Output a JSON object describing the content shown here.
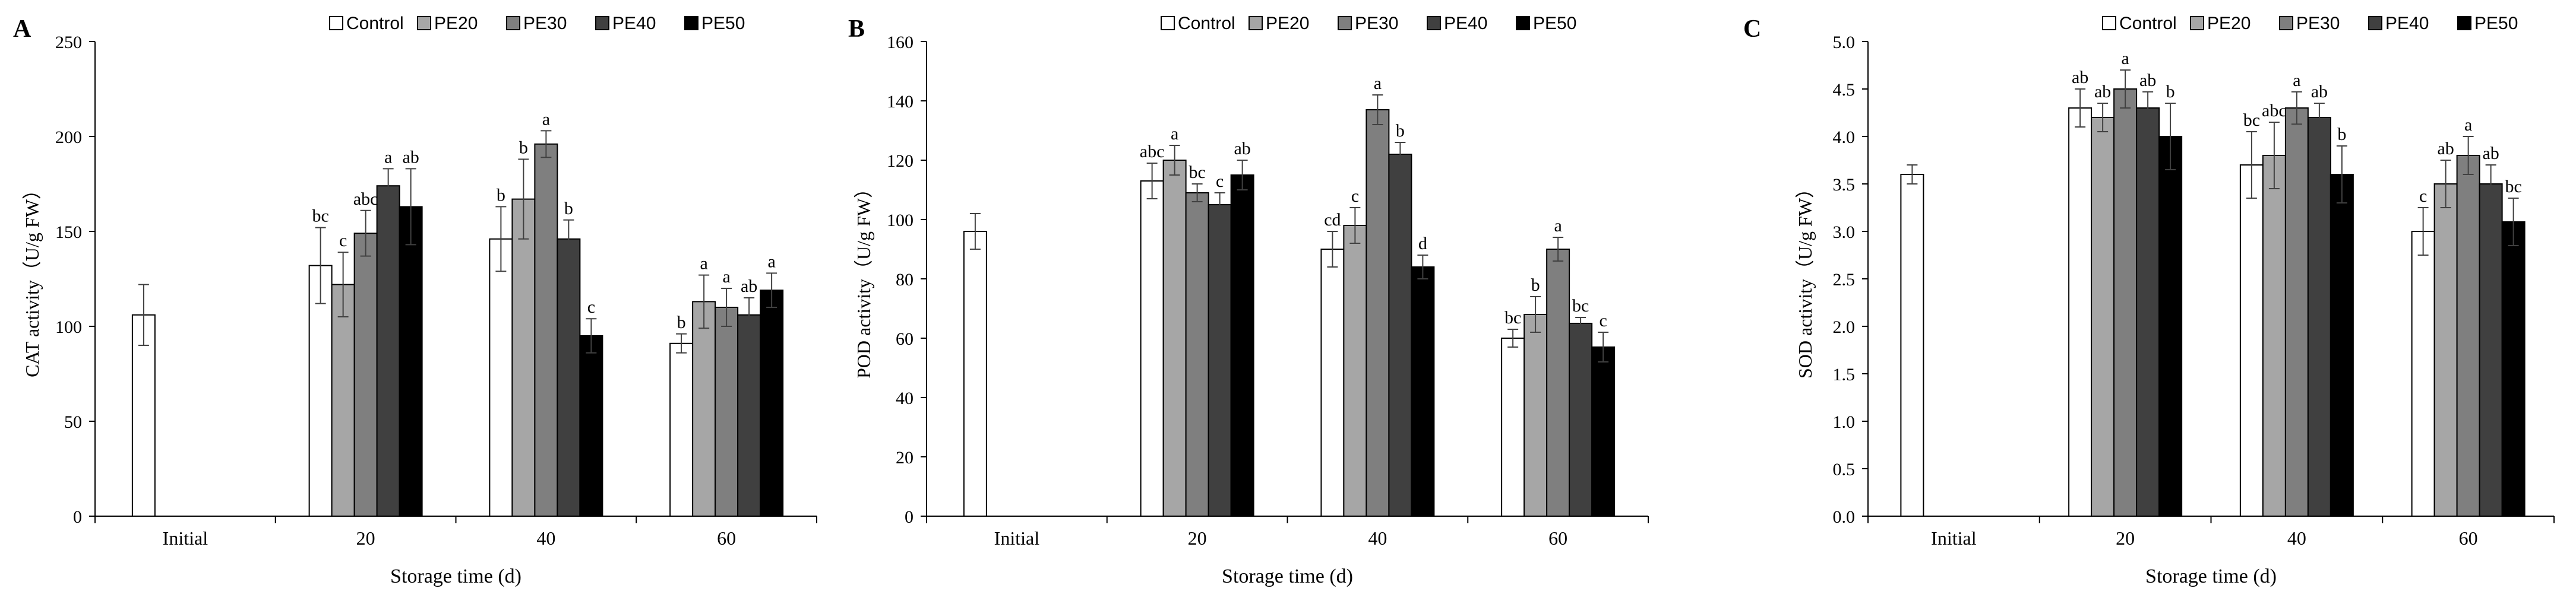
{
  "colors": {
    "Control": "#ffffff",
    "PE20": "#a6a6a6",
    "PE30": "#7f7f7f",
    "PE40": "#404040",
    "PE50": "#000000",
    "axis": "#000000",
    "error_bar": "#404040"
  },
  "chart_data": [
    {
      "type": "bar",
      "panel_label": "A",
      "title": "",
      "xlabel": "Storage time (d)",
      "ylabel": "CAT activity（U/g  FW）",
      "ylim": [
        0,
        250
      ],
      "yticks": [
        0,
        50,
        100,
        150,
        200,
        250
      ],
      "ytick_labels": [
        "0",
        "50",
        "100",
        "150",
        "200",
        "250"
      ],
      "categories": [
        "Initial",
        "20",
        "40",
        "60"
      ],
      "legend": [
        "Control",
        "PE20",
        "PE30",
        "PE40",
        "PE50"
      ],
      "legend_position": "top",
      "initial": {
        "name": "Control",
        "value": 106,
        "error": 16
      },
      "series": [
        {
          "name": "Control",
          "values": [
            null,
            132,
            146,
            91
          ],
          "errors": [
            null,
            20,
            17,
            5
          ],
          "letters": [
            "",
            "bc",
            "b",
            "b"
          ]
        },
        {
          "name": "PE20",
          "values": [
            null,
            122,
            167,
            113
          ],
          "errors": [
            null,
            17,
            21,
            14
          ],
          "letters": [
            "",
            "c",
            "b",
            "a"
          ]
        },
        {
          "name": "PE30",
          "values": [
            null,
            149,
            196,
            110
          ],
          "errors": [
            null,
            12,
            7,
            10
          ],
          "letters": [
            "",
            "abc",
            "a",
            "a"
          ]
        },
        {
          "name": "PE40",
          "values": [
            null,
            174,
            146,
            106
          ],
          "errors": [
            null,
            9,
            10,
            9
          ],
          "letters": [
            "",
            "a",
            "b",
            "ab"
          ]
        },
        {
          "name": "PE50",
          "values": [
            null,
            163,
            95,
            119
          ],
          "errors": [
            null,
            20,
            9,
            9
          ],
          "letters": [
            "",
            "ab",
            "c",
            "a"
          ]
        }
      ]
    },
    {
      "type": "bar",
      "panel_label": "B",
      "title": "",
      "xlabel": "Storage time (d)",
      "ylabel": "POD activity（U/g  FW）",
      "ylim": [
        0,
        160
      ],
      "yticks": [
        0,
        20,
        40,
        60,
        80,
        100,
        120,
        140,
        160
      ],
      "ytick_labels": [
        "0",
        "20",
        "40",
        "60",
        "80",
        "100",
        "120",
        "140",
        "160"
      ],
      "categories": [
        "Initial",
        "20",
        "40",
        "60"
      ],
      "legend": [
        "Control",
        "PE20",
        "PE30",
        "PE40",
        "PE50"
      ],
      "legend_position": "top",
      "initial": {
        "name": "Control",
        "value": 96,
        "error": 6
      },
      "series": [
        {
          "name": "Control",
          "values": [
            null,
            113,
            90,
            60
          ],
          "errors": [
            null,
            6,
            6,
            3
          ],
          "letters": [
            "",
            "abc",
            "cd",
            "bc"
          ]
        },
        {
          "name": "PE20",
          "values": [
            null,
            120,
            98,
            68
          ],
          "errors": [
            null,
            5,
            6,
            6
          ],
          "letters": [
            "",
            "a",
            "c",
            "b"
          ]
        },
        {
          "name": "PE30",
          "values": [
            null,
            109,
            137,
            90
          ],
          "errors": [
            null,
            3,
            5,
            4
          ],
          "letters": [
            "",
            "bc",
            "a",
            "a"
          ]
        },
        {
          "name": "PE40",
          "values": [
            null,
            105,
            122,
            65
          ],
          "errors": [
            null,
            4,
            4,
            2
          ],
          "letters": [
            "",
            "c",
            "b",
            "bc"
          ]
        },
        {
          "name": "PE50",
          "values": [
            null,
            115,
            84,
            57
          ],
          "errors": [
            null,
            5,
            4,
            5
          ],
          "letters": [
            "",
            "ab",
            "d",
            "c"
          ]
        }
      ]
    },
    {
      "type": "bar",
      "panel_label": "C",
      "title": "",
      "xlabel": "Storage time (d)",
      "ylabel": "SOD activity（U/g  FW）",
      "ylim": [
        0,
        5.0
      ],
      "yticks": [
        0,
        0.5,
        1.0,
        1.5,
        2.0,
        2.5,
        3.0,
        3.5,
        4.0,
        4.5,
        5.0
      ],
      "ytick_labels": [
        "0.0",
        "0.5",
        "1.0",
        "1.5",
        "2.0",
        "2.5",
        "3.0",
        "3.5",
        "4.0",
        "4.5",
        "5.0"
      ],
      "categories": [
        "Initial",
        "20",
        "40",
        "60"
      ],
      "legend": [
        "Control",
        "PE20",
        "PE30",
        "PE40",
        "PE50"
      ],
      "legend_position": "top",
      "initial": {
        "name": "Control",
        "value": 3.6,
        "error": 0.1
      },
      "series": [
        {
          "name": "Control",
          "values": [
            null,
            4.3,
            3.7,
            3.0
          ],
          "errors": [
            null,
            0.2,
            0.35,
            0.25
          ],
          "letters": [
            "",
            "ab",
            "bc",
            "c"
          ]
        },
        {
          "name": "PE20",
          "values": [
            null,
            4.2,
            3.8,
            3.5
          ],
          "errors": [
            null,
            0.15,
            0.35,
            0.25
          ],
          "letters": [
            "",
            "ab",
            "abc",
            "ab"
          ]
        },
        {
          "name": "PE30",
          "values": [
            null,
            4.5,
            4.3,
            3.8
          ],
          "errors": [
            null,
            0.2,
            0.17,
            0.2
          ],
          "letters": [
            "",
            "a",
            "a",
            "a"
          ]
        },
        {
          "name": "PE40",
          "values": [
            null,
            4.3,
            4.2,
            3.5
          ],
          "errors": [
            null,
            0.17,
            0.15,
            0.2
          ],
          "letters": [
            "",
            "ab",
            "ab",
            "ab"
          ]
        },
        {
          "name": "PE50",
          "values": [
            null,
            4.0,
            3.6,
            3.1
          ],
          "errors": [
            null,
            0.35,
            0.3,
            0.25
          ],
          "letters": [
            "",
            "b",
            "b",
            "bc"
          ]
        }
      ]
    }
  ]
}
